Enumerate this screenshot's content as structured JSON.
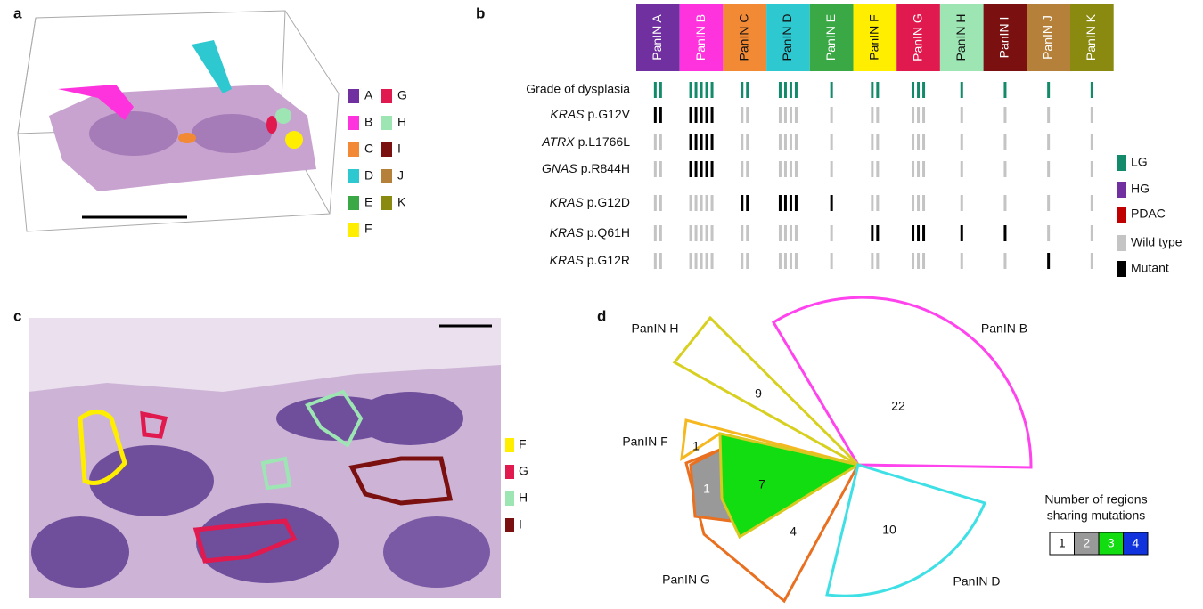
{
  "panel_a": {
    "label": "a",
    "legend": [
      {
        "key": "A",
        "color": "#7030a0"
      },
      {
        "key": "B",
        "color": "#ff33dd"
      },
      {
        "key": "C",
        "color": "#f28a35"
      },
      {
        "key": "D",
        "color": "#2ec8d0"
      },
      {
        "key": "E",
        "color": "#3aa845"
      },
      {
        "key": "F",
        "color": "#ffee00"
      },
      {
        "key": "G",
        "color": "#e0194e"
      },
      {
        "key": "H",
        "color": "#9de6b4"
      },
      {
        "key": "I",
        "color": "#7a1010"
      },
      {
        "key": "J",
        "color": "#b5803a"
      },
      {
        "key": "K",
        "color": "#8a8a10"
      }
    ]
  },
  "panel_b": {
    "label": "b",
    "columns": [
      {
        "name": "PanIN A",
        "color": "#7030a0",
        "regions": 2
      },
      {
        "name": "PanIN B",
        "color": "#ff33dd",
        "regions": 5
      },
      {
        "name": "PanIN C",
        "color": "#f28a35",
        "regions": 2
      },
      {
        "name": "PanIN D",
        "color": "#2ec8d0",
        "regions": 4
      },
      {
        "name": "PanIN E",
        "color": "#3aa845",
        "regions": 1
      },
      {
        "name": "PanIN F",
        "color": "#ffee00",
        "regions": 2
      },
      {
        "name": "PanIN G",
        "color": "#e0194e",
        "regions": 3
      },
      {
        "name": "PanIN H",
        "color": "#9de6b4",
        "regions": 1
      },
      {
        "name": "PanIN I",
        "color": "#7a1010",
        "regions": 1
      },
      {
        "name": "PanIN J",
        "color": "#b5803a",
        "regions": 1
      },
      {
        "name": "PanIN K",
        "color": "#8a8a10",
        "regions": 1
      }
    ],
    "rows": [
      {
        "label": "Grade of dysplasia",
        "status": [
          "LG",
          "LG",
          "LG",
          "LG",
          "LG",
          "LG",
          "LG",
          "LG",
          "LG",
          "LG",
          "LG"
        ]
      },
      {
        "gene": "KRAS",
        "variant": "p.G12V",
        "status": [
          "Mutant",
          "Mutant",
          "Wild type",
          "Wild type",
          "Wild type",
          "Wild type",
          "Wild type",
          "Wild type",
          "Wild type",
          "Wild type",
          "Wild type"
        ]
      },
      {
        "gene": "ATRX",
        "variant": "p.L1766L",
        "status": [
          "Wild type",
          "Mutant",
          "Wild type",
          "Wild type",
          "Wild type",
          "Wild type",
          "Wild type",
          "Wild type",
          "Wild type",
          "Wild type",
          "Wild type"
        ]
      },
      {
        "gene": "GNAS",
        "variant": "p.R844H",
        "status": [
          "Wild type",
          "Mutant",
          "Wild type",
          "Wild type",
          "Wild type",
          "Wild type",
          "Wild type",
          "Wild type",
          "Wild type",
          "Wild type",
          "Wild type"
        ]
      },
      {
        "gene": "KRAS",
        "variant": "p.G12D",
        "status": [
          "Wild type",
          "Wild type",
          "Mutant",
          "Mutant",
          "Mutant",
          "Wild type",
          "Wild type",
          "Wild type",
          "Wild type",
          "Wild type",
          "Wild type"
        ]
      },
      {
        "gene": "KRAS",
        "variant": "p.Q61H",
        "status": [
          "Wild type",
          "Wild type",
          "Wild type",
          "Wild type",
          "Wild type",
          "Mutant",
          "Mutant",
          "Mutant",
          "Mutant",
          "Wild type",
          "Wild type"
        ]
      },
      {
        "gene": "KRAS",
        "variant": "p.G12R",
        "status": [
          "Wild type",
          "Wild type",
          "Wild type",
          "Wild type",
          "Wild type",
          "Wild type",
          "Wild type",
          "Wild type",
          "Wild type",
          "Mutant",
          "Wild type"
        ]
      }
    ],
    "legend": [
      {
        "label": "LG",
        "color": "#138a6a"
      },
      {
        "label": "HG",
        "color": "#7030a0"
      },
      {
        "label": "PDAC",
        "color": "#c00000"
      },
      {
        "label": "Wild type",
        "color": "#c4c4c4"
      },
      {
        "label": "Mutant",
        "color": "#000000"
      }
    ]
  },
  "panel_c": {
    "label": "c",
    "legend": [
      {
        "key": "F",
        "color": "#ffee00"
      },
      {
        "key": "G",
        "color": "#e0194e"
      },
      {
        "key": "H",
        "color": "#9de6b4"
      },
      {
        "key": "I",
        "color": "#7a1010"
      }
    ]
  },
  "panel_d": {
    "label": "d",
    "lesions": [
      "PanIN H",
      "PanIN B",
      "PanIN F",
      "PanIN G",
      "PanIN D"
    ],
    "region_counts": [
      22,
      9,
      1,
      1,
      7,
      4,
      10
    ],
    "legend_title": [
      "Number of regions",
      "sharing mutations"
    ],
    "legend": [
      {
        "label": "1",
        "color": "#ffffff"
      },
      {
        "label": "2",
        "color": "#999999"
      },
      {
        "label": "3",
        "color": "#11dd11"
      },
      {
        "label": "4",
        "color": "#1133dd"
      }
    ]
  }
}
